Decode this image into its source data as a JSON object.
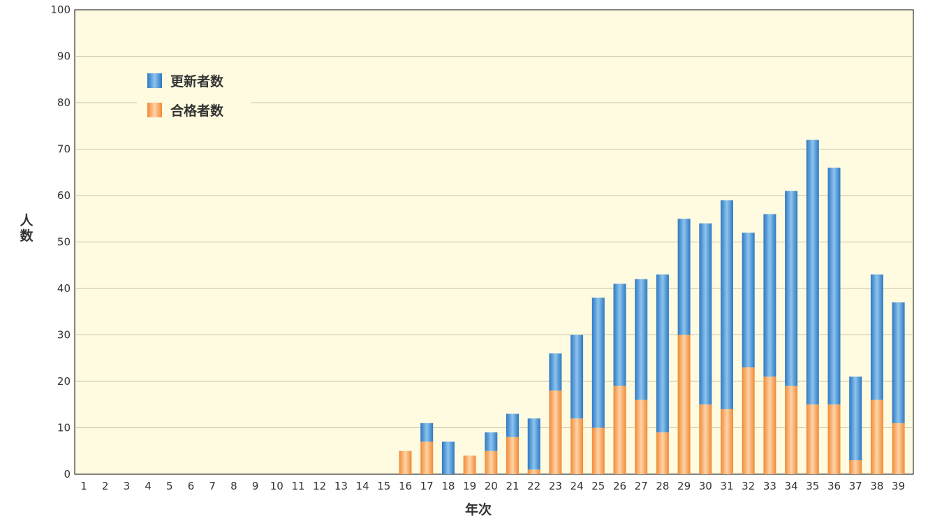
{
  "chart_data": {
    "type": "bar",
    "stacked": true,
    "xlabel": "年次",
    "ylabel": "人数",
    "ylim": [
      0,
      100
    ],
    "yticks": [
      0,
      10,
      20,
      30,
      40,
      50,
      60,
      70,
      80,
      90,
      100
    ],
    "grid": true,
    "legend_position": "top-left",
    "categories": [
      "1",
      "2",
      "3",
      "4",
      "5",
      "6",
      "7",
      "8",
      "9",
      "10",
      "11",
      "12",
      "13",
      "14",
      "15",
      "16",
      "17",
      "18",
      "19",
      "20",
      "21",
      "22",
      "23",
      "24",
      "25",
      "26",
      "27",
      "28",
      "29",
      "30",
      "31",
      "32",
      "33",
      "34",
      "35",
      "36",
      "37",
      "38",
      "39"
    ],
    "series": [
      {
        "name": "合格者数",
        "color": "#f59a4a",
        "values": [
          0,
          0,
          0,
          0,
          0,
          0,
          0,
          0,
          0,
          0,
          0,
          0,
          0,
          0,
          0,
          5,
          7,
          0,
          4,
          5,
          8,
          1,
          18,
          12,
          10,
          19,
          16,
          9,
          30,
          15,
          14,
          23,
          21,
          19,
          15,
          15,
          3,
          16,
          11
        ]
      },
      {
        "name": "更新者数",
        "color": "#4a90d0",
        "values": [
          0,
          0,
          0,
          0,
          0,
          0,
          0,
          0,
          0,
          0,
          0,
          0,
          0,
          0,
          0,
          0,
          4,
          7,
          0,
          4,
          5,
          11,
          8,
          18,
          28,
          22,
          26,
          34,
          25,
          39,
          45,
          29,
          35,
          42,
          57,
          51,
          18,
          27,
          26
        ]
      }
    ]
  }
}
